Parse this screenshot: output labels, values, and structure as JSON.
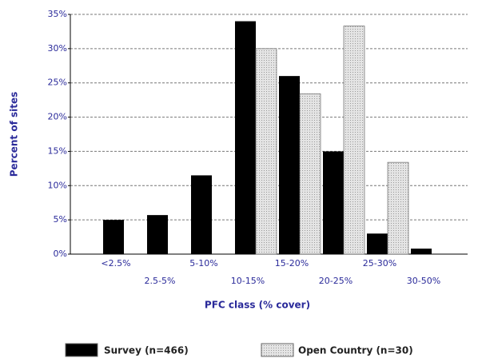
{
  "chart_data": {
    "type": "bar",
    "categories": [
      "<2.5%",
      "2.5-5%",
      "5-10%",
      "10-15%",
      "15-20%",
      "20-25%",
      "25-30%",
      "30-50%"
    ],
    "series": [
      {
        "name": "Survey (n=466)",
        "color": "#000000",
        "values": [
          5,
          5.7,
          11.5,
          34,
          26,
          15,
          3,
          0.8
        ]
      },
      {
        "name": "Open Country (n=30)",
        "color": "#e4e4e4",
        "values": [
          0,
          0,
          0,
          30,
          23.4,
          33.3,
          13.4,
          0
        ]
      }
    ],
    "xlabel": "PFC class (% cover)",
    "ylabel": "Percent of sites",
    "ylim": [
      0,
      35
    ],
    "yticks": [
      {
        "value": 0,
        "label": "0%"
      },
      {
        "value": 5,
        "label": "5%"
      },
      {
        "value": 10,
        "label": "10%"
      },
      {
        "value": 15,
        "label": "15%"
      },
      {
        "value": 20,
        "label": "20%"
      },
      {
        "value": 25,
        "label": "25%"
      },
      {
        "value": 30,
        "label": "30%"
      },
      {
        "value": 35,
        "label": "35%"
      }
    ],
    "grid": true
  }
}
